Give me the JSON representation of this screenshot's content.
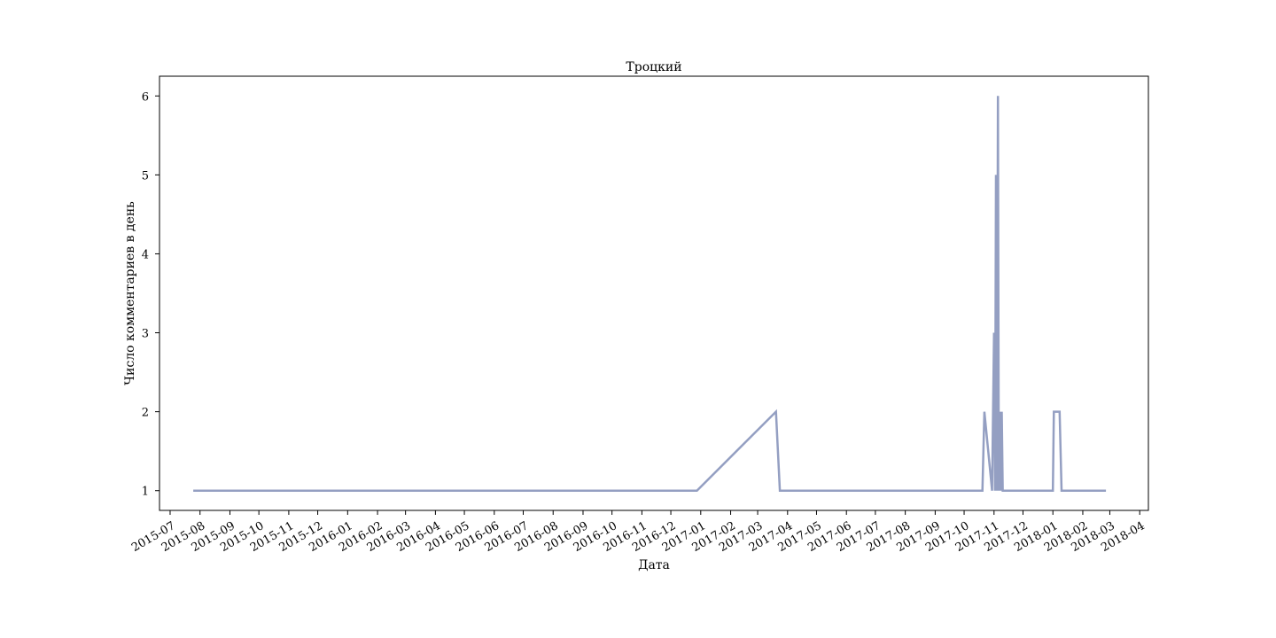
{
  "chart_data": {
    "type": "line",
    "title": "Троцкий",
    "xlabel": "Дата",
    "ylabel": "Число комментариев в день",
    "x_scale": "date",
    "xlim": [
      "2015-06-20",
      "2018-04-10"
    ],
    "ylim": [
      0.75,
      6.25
    ],
    "grid": false,
    "line_color": "#949fc2",
    "x_ticks": [
      "2015-07",
      "2015-08",
      "2015-09",
      "2015-10",
      "2015-11",
      "2015-12",
      "2016-01",
      "2016-02",
      "2016-03",
      "2016-04",
      "2016-05",
      "2016-06",
      "2016-07",
      "2016-08",
      "2016-09",
      "2016-10",
      "2016-11",
      "2016-12",
      "2017-01",
      "2017-02",
      "2017-03",
      "2017-04",
      "2017-05",
      "2017-06",
      "2017-07",
      "2017-08",
      "2017-09",
      "2017-10",
      "2017-11",
      "2017-12",
      "2018-01",
      "2018-02",
      "2018-03",
      "2018-04"
    ],
    "y_ticks": [
      1,
      2,
      3,
      4,
      5,
      6
    ],
    "series": [
      {
        "x": [
          "2015-07-25",
          "2016-12-28",
          "2017-03-20",
          "2017-03-24",
          "2017-10-20",
          "2017-10-22",
          "2017-10-30",
          "2017-11-01",
          "2017-11-02",
          "2017-11-03",
          "2017-11-04",
          "2017-11-05",
          "2017-11-06",
          "2017-11-07",
          "2017-11-08",
          "2017-11-09",
          "2017-11-10",
          "2017-11-11",
          "2017-11-12",
          "2017-11-13",
          "2017-11-15",
          "2018-01-01",
          "2018-01-02",
          "2018-01-08",
          "2018-01-10",
          "2018-02-25"
        ],
        "y": [
          1,
          1,
          2,
          1,
          1,
          2,
          1,
          3,
          1,
          5,
          1,
          6,
          1,
          2,
          1,
          2,
          1,
          1,
          1,
          1,
          1,
          1,
          2,
          2,
          1,
          1
        ]
      }
    ]
  }
}
